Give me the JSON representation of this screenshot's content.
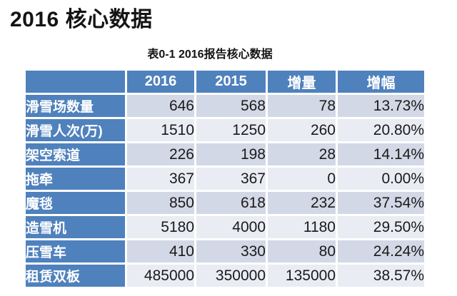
{
  "page": {
    "title": "2016 核心数据",
    "caption": "表0-1 2016报告核心数据"
  },
  "colors": {
    "header_blue": "#4f81bd",
    "band_dark": "#d3d8e6",
    "band_light": "#e9ecf3",
    "header_text": "#ffffff",
    "body_text": "#1a1a1a"
  },
  "chart_data": {
    "type": "table",
    "title": "表0-1 2016报告核心数据",
    "columns": [
      "",
      "2016",
      "2015",
      "增量",
      "增幅"
    ],
    "rows": [
      {
        "label": "滑雪场数量",
        "values": [
          "646",
          "568",
          "78",
          "13.73%"
        ]
      },
      {
        "label": "滑雪人次(万)",
        "values": [
          "1510",
          "1250",
          "260",
          "20.80%"
        ]
      },
      {
        "label": "架空索道",
        "values": [
          "226",
          "198",
          "28",
          "14.14%"
        ]
      },
      {
        "label": "拖牵",
        "values": [
          "367",
          "367",
          "0",
          "0.00%"
        ]
      },
      {
        "label": "魔毯",
        "values": [
          "850",
          "618",
          "232",
          "37.54%"
        ]
      },
      {
        "label": "造雪机",
        "values": [
          "5180",
          "4000",
          "1180",
          "29.50%"
        ]
      },
      {
        "label": "压雪车",
        "values": [
          "410",
          "330",
          "80",
          "24.24%"
        ]
      },
      {
        "label": "租赁双板",
        "values": [
          "485000",
          "350000",
          "135000",
          "38.57%"
        ]
      }
    ]
  }
}
